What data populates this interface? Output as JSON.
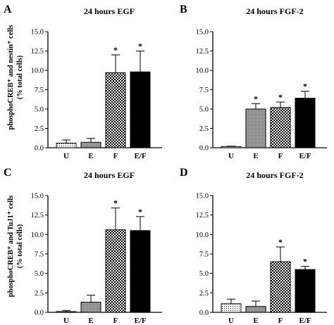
{
  "figure": {
    "row_ylabels": [
      {
        "line1": "phosphoCREB⁺ and nestin⁺ cells",
        "line2": "(% total cells)"
      },
      {
        "line1": "phosphoCREB⁺ and TuJ1⁺ cells",
        "line2": "(% total cells)"
      }
    ]
  },
  "chart_data": [
    {
      "letter": "A",
      "title": "24 hours EGF",
      "type": "bar",
      "categories": [
        "U",
        "E",
        "F",
        "E/F"
      ],
      "values": [
        0.6,
        0.7,
        9.7,
        9.8
      ],
      "errors": [
        0.4,
        0.5,
        2.3,
        2.7
      ],
      "significant": [
        false,
        false,
        true,
        true
      ],
      "ylim": [
        0,
        15
      ],
      "yticks": [
        "0.0",
        "2.5",
        "5.0",
        "7.5",
        "10.0",
        "12.5",
        "15.0"
      ],
      "fills": [
        "dots",
        "dots-dense",
        "checker",
        "solid"
      ]
    },
    {
      "letter": "B",
      "title": "24 hours FGF-2",
      "type": "bar",
      "categories": [
        "U",
        "E",
        "F",
        "E/F"
      ],
      "values": [
        0.15,
        5.0,
        5.2,
        6.4
      ],
      "errors": [
        0.05,
        0.7,
        0.7,
        0.9
      ],
      "significant": [
        false,
        true,
        true,
        true
      ],
      "ylim": [
        0,
        15
      ],
      "yticks": [
        "0.0",
        "2.5",
        "5.0",
        "7.5",
        "10.0",
        "12.5",
        "15.0"
      ],
      "fills": [
        "dots",
        "dots-dense",
        "checker",
        "solid"
      ]
    },
    {
      "letter": "C",
      "title": "24 hours EGF",
      "type": "bar",
      "categories": [
        "U",
        "E",
        "F",
        "E/F"
      ],
      "values": [
        0.1,
        1.3,
        10.6,
        10.5
      ],
      "errors": [
        0.15,
        0.9,
        2.8,
        1.8
      ],
      "significant": [
        false,
        false,
        true,
        true
      ],
      "ylim": [
        0,
        15
      ],
      "yticks": [
        "0.0",
        "2.5",
        "5.0",
        "7.5",
        "10.0",
        "12.5",
        "15.0"
      ],
      "fills": [
        "dots",
        "dots-dense",
        "checker",
        "solid"
      ]
    },
    {
      "letter": "D",
      "title": "24 hours FGF-2",
      "type": "bar",
      "categories": [
        "U",
        "E",
        "F",
        "E/F"
      ],
      "values": [
        1.1,
        0.75,
        6.5,
        5.5
      ],
      "errors": [
        0.6,
        0.7,
        1.9,
        0.4
      ],
      "significant": [
        false,
        false,
        true,
        true
      ],
      "ylim": [
        0,
        15
      ],
      "yticks": [
        "0.0",
        "2.5",
        "5.0",
        "7.5",
        "10.0",
        "12.5",
        "15.0"
      ],
      "fills": [
        "dots",
        "dots-dense",
        "checker",
        "solid"
      ]
    }
  ]
}
